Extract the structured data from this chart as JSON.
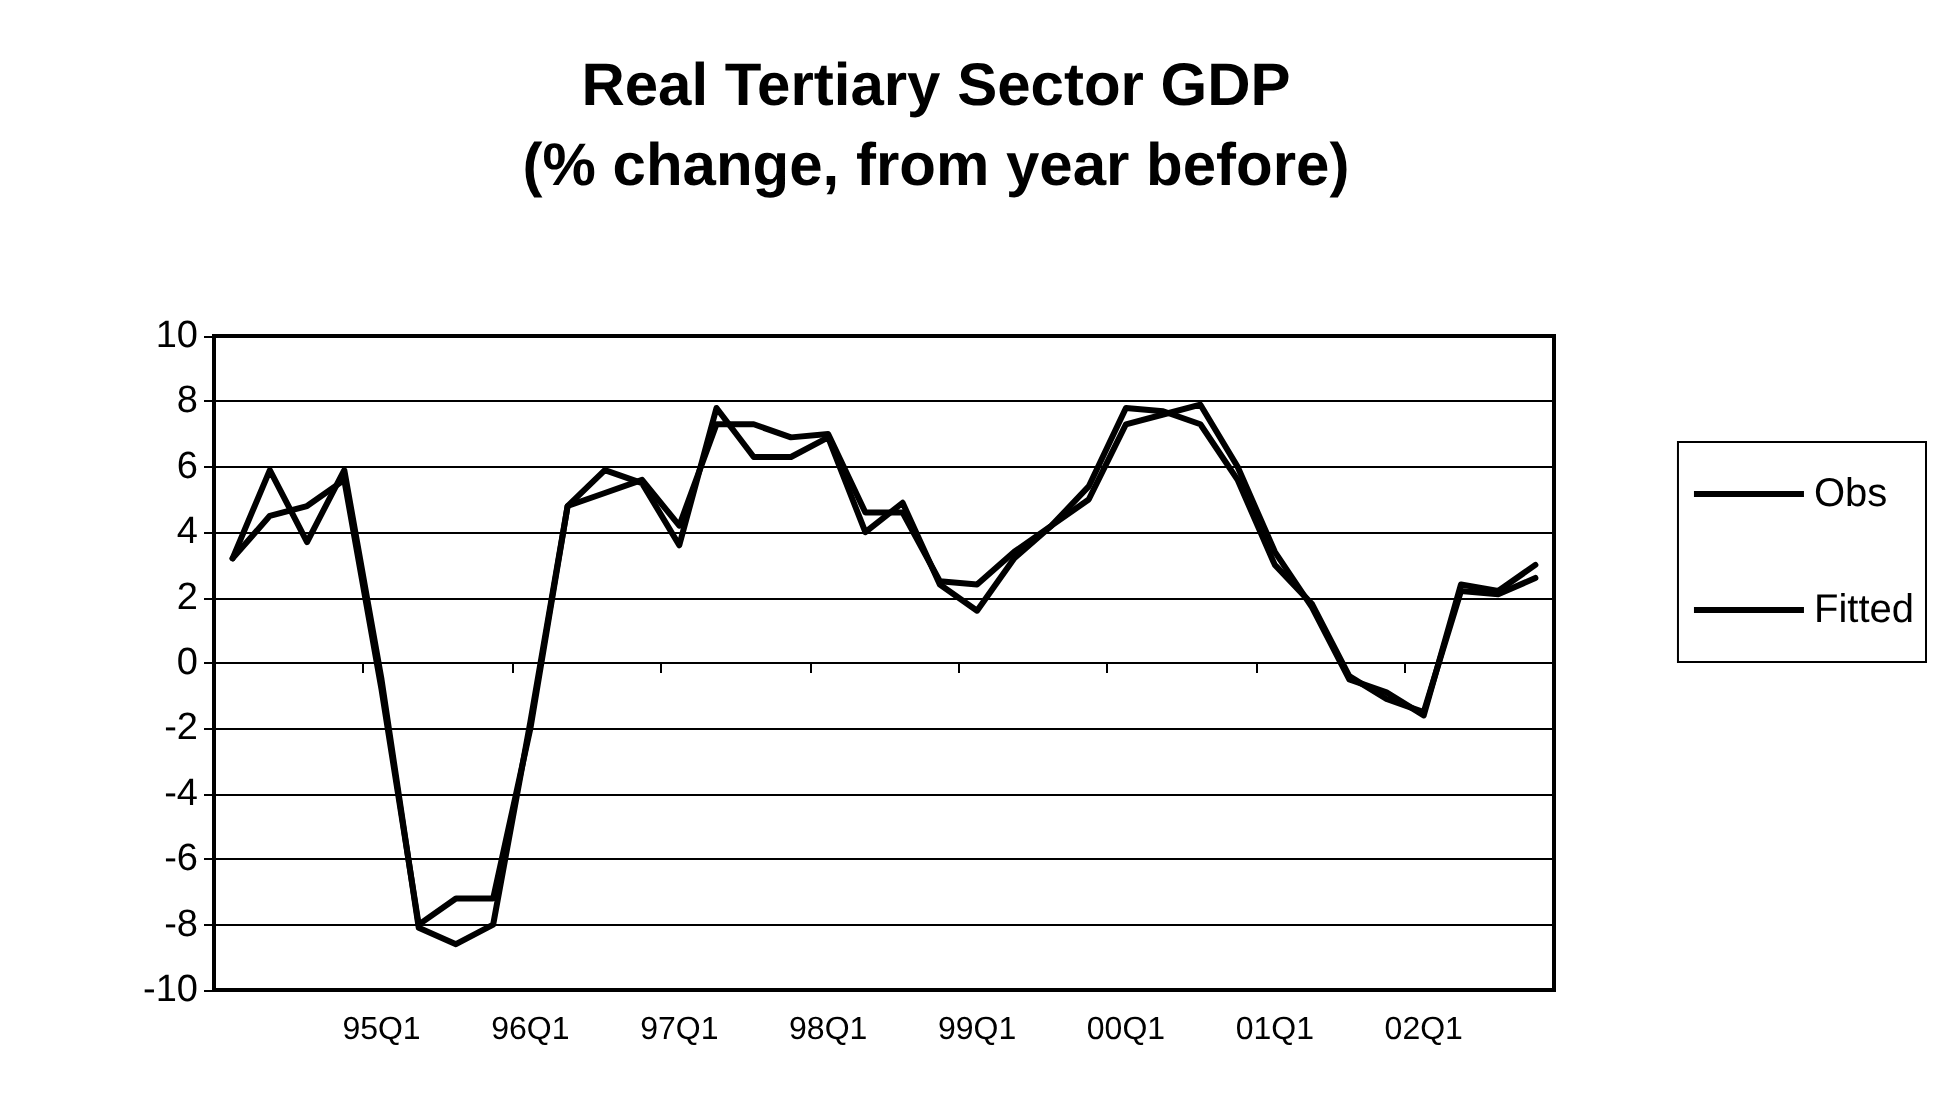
{
  "chart_data": {
    "type": "line",
    "title": "Real Tertiary Sector GDP\n(% change, from year before)",
    "categories": [
      null,
      null,
      null,
      null,
      "95Q1",
      null,
      null,
      null,
      "96Q1",
      null,
      null,
      null,
      "97Q1",
      null,
      null,
      null,
      "98Q1",
      null,
      null,
      null,
      "99Q1",
      null,
      null,
      null,
      "00Q1",
      null,
      null,
      null,
      "01Q1",
      null,
      null,
      null,
      "02Q1",
      null,
      null,
      null
    ],
    "series": [
      {
        "name": "Obs",
        "color": "#000000",
        "values": [
          3.2,
          5.9,
          3.7,
          5.9,
          -0.5,
          -8.1,
          -8.6,
          -8.0,
          -1.8,
          4.8,
          5.9,
          5.5,
          3.6,
          7.8,
          6.3,
          6.3,
          6.9,
          4.0,
          4.9,
          2.4,
          1.6,
          3.2,
          4.2,
          5.0,
          7.3,
          7.6,
          7.9,
          6.0,
          3.4,
          1.7,
          -0.5,
          -0.9,
          -1.6,
          2.4,
          2.2,
          3.0
        ]
      },
      {
        "name": "Fitted",
        "color": "#000000",
        "values": [
          3.2,
          4.5,
          4.8,
          5.6,
          -0.8,
          -8.0,
          -7.2,
          -7.2,
          -2.0,
          4.8,
          5.2,
          5.6,
          4.2,
          7.3,
          7.3,
          6.9,
          7.0,
          4.6,
          4.6,
          2.5,
          2.4,
          3.4,
          4.2,
          5.4,
          7.8,
          7.7,
          7.3,
          5.6,
          3.0,
          1.8,
          -0.4,
          -1.1,
          -1.5,
          2.2,
          2.1,
          2.6
        ]
      }
    ],
    "ylim": [
      -10,
      10
    ],
    "yticks": [
      -10,
      -8,
      -6,
      -4,
      -2,
      0,
      2,
      4,
      6,
      8,
      10
    ],
    "grid": "y",
    "legend": "right",
    "marker": "none",
    "line_style": "solid"
  }
}
